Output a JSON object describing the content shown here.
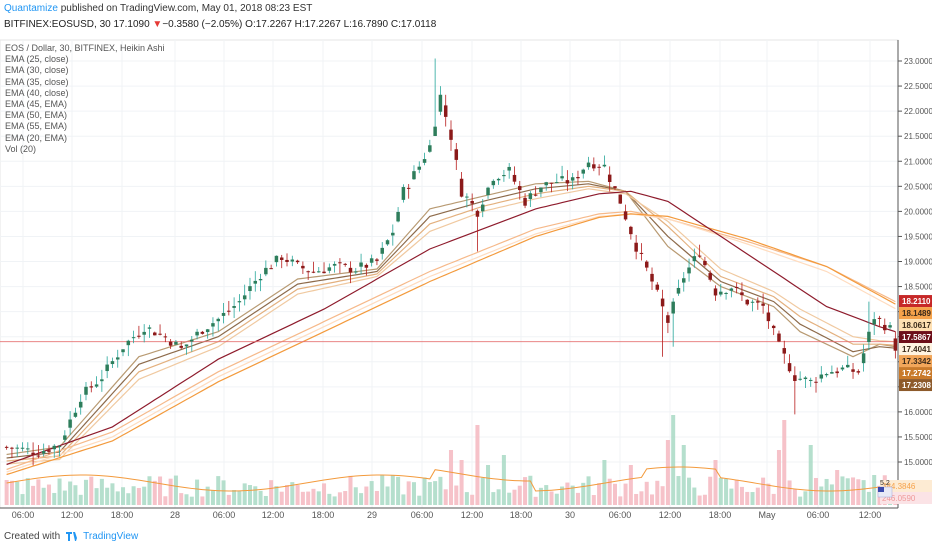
{
  "header": {
    "author": "Quantamize",
    "published": " published on TradingView.com, May 01, 2018 08:23 EST",
    "symbol_line": "BITFINEX:EOSUSD, 30",
    "last": "17.1090",
    "arrow": "▼",
    "change": "−0.3580 (−2.05%)",
    "ohlc": "O:17.2267 H:17.2267 L:16.7890 C:17.0118"
  },
  "legend": {
    "title": "EOS / Dollar, 30, BITFINEX, Heikin Ashi",
    "items": [
      "EMA (25, close)",
      "EMA (30, close)",
      "EMA (35, close)",
      "EMA (40, close)",
      "EMA (45, EMA)",
      "EMA (50, EMA)",
      "EMA (55, EMA)",
      "EMA (20, EMA)",
      "Vol (20)"
    ]
  },
  "footer": {
    "created": "Created with",
    "brand": "TradingView"
  },
  "chart_data": {
    "type": "candlestick",
    "chart_style": "Heikin Ashi",
    "y_ticks": [
      "23.0000",
      "22.5000",
      "22.0000",
      "21.5000",
      "21.0000",
      "20.5000",
      "20.0000",
      "19.5000",
      "19.0000",
      "18.5000",
      "18.0000",
      "17.5000",
      "17.0000",
      "16.5000",
      "16.0000",
      "15.5000",
      "15.0000"
    ],
    "ylim": [
      14.5,
      23.2
    ],
    "x_ticks": [
      "06:00",
      "12:00",
      "18:00",
      "28",
      "06:00",
      "12:00",
      "18:00",
      "29",
      "06:00",
      "12:00",
      "18:00",
      "30",
      "06:00",
      "12:00",
      "18:00",
      "May",
      "06:00",
      "12:00"
    ],
    "current_price_line": 17.4,
    "price_labels": [
      {
        "text": "18.2110",
        "color": "#c62828",
        "value": 18.211
      },
      {
        "text": "18.1489",
        "color": "#f6a24a",
        "value": 18.1489
      },
      {
        "text": "18.0617",
        "color": "#ffe0b2",
        "value": 18.0617
      },
      {
        "text": "17.5867",
        "color": "#6d0e19",
        "value": 17.5867
      },
      {
        "text": "17.4041",
        "color": "#fff3e0",
        "value": 17.4041
      },
      {
        "text": "17.3342",
        "color": "#f2a65a",
        "value": 17.3342
      },
      {
        "text": "17.2742",
        "color": "#c97a2a",
        "value": 17.2742
      },
      {
        "text": "17.2308",
        "color": "#8d5a2b",
        "value": 17.2308
      }
    ],
    "volume_labels": [
      {
        "text": "384.3846",
        "color": "#f6a24a"
      },
      {
        "text": "246.0590",
        "color": "#ef9a9a"
      }
    ],
    "volume_badge": "5.2",
    "ha_anchor_points": [
      [
        0,
        15.3
      ],
      [
        6,
        15.2
      ],
      [
        10,
        15.35
      ],
      [
        14,
        16.3
      ],
      [
        18,
        16.7
      ],
      [
        22,
        17.3
      ],
      [
        26,
        17.7
      ],
      [
        30,
        17.5
      ],
      [
        33,
        17.25
      ],
      [
        37,
        17.65
      ],
      [
        40,
        17.85
      ],
      [
        44,
        18.2
      ],
      [
        48,
        18.75
      ],
      [
        52,
        19.1
      ],
      [
        55,
        18.9
      ],
      [
        58,
        18.8
      ],
      [
        62,
        18.9
      ],
      [
        66,
        18.85
      ],
      [
        70,
        19.0
      ],
      [
        73,
        19.6
      ],
      [
        75,
        20.4
      ],
      [
        78,
        20.9
      ],
      [
        80,
        21.3
      ],
      [
        82,
        22.3
      ],
      [
        84,
        21.5
      ],
      [
        86,
        20.4
      ],
      [
        89,
        20.0
      ],
      [
        92,
        20.7
      ],
      [
        95,
        20.8
      ],
      [
        98,
        20.2
      ],
      [
        101,
        20.5
      ],
      [
        104,
        20.6
      ],
      [
        107,
        20.6
      ],
      [
        110,
        21.0
      ],
      [
        113,
        20.9
      ],
      [
        116,
        20.2
      ],
      [
        119,
        19.3
      ],
      [
        122,
        18.6
      ],
      [
        125,
        17.8
      ],
      [
        128,
        18.7
      ],
      [
        131,
        19.2
      ],
      [
        134,
        18.4
      ],
      [
        137,
        18.5
      ],
      [
        140,
        18.2
      ],
      [
        143,
        18.1
      ],
      [
        146,
        17.3
      ],
      [
        149,
        16.7
      ],
      [
        152,
        16.6
      ],
      [
        155,
        16.8
      ],
      [
        158,
        16.85
      ],
      [
        161,
        16.8
      ],
      [
        164,
        17.9
      ],
      [
        167,
        17.65
      ],
      [
        168,
        17.3
      ]
    ],
    "ema_series": [
      {
        "name": "EMA (25, close)",
        "color": "#b89a72",
        "points": [
          [
            0,
            15.15
          ],
          [
            10,
            15.3
          ],
          [
            25,
            17.1
          ],
          [
            40,
            17.6
          ],
          [
            55,
            18.65
          ],
          [
            70,
            18.85
          ],
          [
            80,
            20.05
          ],
          [
            90,
            20.3
          ],
          [
            100,
            20.55
          ],
          [
            110,
            20.6
          ],
          [
            117,
            20.4
          ],
          [
            125,
            19.3
          ],
          [
            135,
            18.5
          ],
          [
            145,
            18.1
          ],
          [
            150,
            17.6
          ],
          [
            160,
            17.1
          ],
          [
            165,
            17.35
          ],
          [
            168,
            17.3
          ]
        ]
      },
      {
        "name": "EMA (30, close)",
        "color": "#8d6a4a",
        "points": [
          [
            0,
            15.08
          ],
          [
            10,
            15.2
          ],
          [
            25,
            16.95
          ],
          [
            40,
            17.5
          ],
          [
            55,
            18.55
          ],
          [
            70,
            18.8
          ],
          [
            80,
            19.9
          ],
          [
            90,
            20.2
          ],
          [
            100,
            20.45
          ],
          [
            110,
            20.55
          ],
          [
            117,
            20.4
          ],
          [
            125,
            19.5
          ],
          [
            135,
            18.6
          ],
          [
            145,
            18.2
          ],
          [
            150,
            17.75
          ],
          [
            160,
            17.2
          ],
          [
            165,
            17.3
          ],
          [
            168,
            17.27
          ]
        ]
      },
      {
        "name": "EMA (35, close)",
        "color": "#e3b07e",
        "points": [
          [
            0,
            15.02
          ],
          [
            10,
            15.12
          ],
          [
            25,
            16.8
          ],
          [
            40,
            17.4
          ],
          [
            55,
            18.45
          ],
          [
            70,
            18.75
          ],
          [
            80,
            19.75
          ],
          [
            90,
            20.1
          ],
          [
            100,
            20.35
          ],
          [
            110,
            20.5
          ],
          [
            117,
            20.4
          ],
          [
            125,
            19.7
          ],
          [
            135,
            18.7
          ],
          [
            145,
            18.3
          ],
          [
            150,
            17.9
          ],
          [
            160,
            17.35
          ],
          [
            165,
            17.35
          ],
          [
            168,
            17.33
          ]
        ]
      },
      {
        "name": "EMA (40, close)",
        "color": "#f0c9a0",
        "points": [
          [
            0,
            14.96
          ],
          [
            10,
            15.05
          ],
          [
            25,
            16.65
          ],
          [
            40,
            17.3
          ],
          [
            55,
            18.35
          ],
          [
            70,
            18.7
          ],
          [
            80,
            19.6
          ],
          [
            90,
            20.0
          ],
          [
            100,
            20.25
          ],
          [
            110,
            20.45
          ],
          [
            117,
            20.35
          ],
          [
            125,
            19.8
          ],
          [
            135,
            18.85
          ],
          [
            145,
            18.4
          ],
          [
            150,
            18.05
          ],
          [
            160,
            17.5
          ],
          [
            165,
            17.42
          ],
          [
            168,
            17.4
          ]
        ]
      },
      {
        "name": "EMA (45, EMA)",
        "color": "#f6b98a",
        "points": [
          [
            0,
            14.85
          ],
          [
            20,
            15.6
          ],
          [
            40,
            16.8
          ],
          [
            60,
            17.8
          ],
          [
            80,
            18.8
          ],
          [
            100,
            19.65
          ],
          [
            112,
            19.95
          ],
          [
            118,
            20.0
          ],
          [
            125,
            19.85
          ],
          [
            140,
            19.4
          ],
          [
            155,
            18.9
          ],
          [
            168,
            18.2
          ]
        ]
      },
      {
        "name": "EMA (50, EMA)",
        "color": "#ffdcbf",
        "points": [
          [
            0,
            14.8
          ],
          [
            20,
            15.5
          ],
          [
            40,
            16.7
          ],
          [
            60,
            17.7
          ],
          [
            80,
            18.7
          ],
          [
            100,
            19.55
          ],
          [
            112,
            19.9
          ],
          [
            118,
            19.95
          ],
          [
            125,
            19.85
          ],
          [
            140,
            19.35
          ],
          [
            155,
            18.8
          ],
          [
            168,
            18.06
          ]
        ]
      },
      {
        "name": "EMA (55, EMA)",
        "color": "#f39a3c",
        "points": [
          [
            0,
            14.75
          ],
          [
            20,
            15.42
          ],
          [
            40,
            16.6
          ],
          [
            60,
            17.6
          ],
          [
            80,
            18.6
          ],
          [
            100,
            19.5
          ],
          [
            112,
            19.88
          ],
          [
            118,
            19.95
          ],
          [
            125,
            19.9
          ],
          [
            140,
            19.45
          ],
          [
            155,
            18.9
          ],
          [
            168,
            18.15
          ]
        ]
      },
      {
        "name": "EMA (20, EMA)",
        "color": "#8e1b2c",
        "points": [
          [
            0,
            14.95
          ],
          [
            20,
            15.7
          ],
          [
            40,
            17.05
          ],
          [
            60,
            18.05
          ],
          [
            80,
            19.25
          ],
          [
            100,
            20.05
          ],
          [
            112,
            20.35
          ],
          [
            118,
            20.4
          ],
          [
            125,
            20.2
          ],
          [
            135,
            19.5
          ],
          [
            145,
            18.8
          ],
          [
            155,
            18.1
          ],
          [
            165,
            17.7
          ],
          [
            168,
            17.6
          ]
        ]
      }
    ],
    "volume_spikes": [
      [
        84,
        0.55
      ],
      [
        86,
        0.45
      ],
      [
        89,
        0.8
      ],
      [
        91,
        0.4
      ],
      [
        94,
        0.5
      ],
      [
        113,
        0.45
      ],
      [
        118,
        0.4
      ],
      [
        125,
        0.65
      ],
      [
        126,
        0.9
      ],
      [
        128,
        0.6
      ],
      [
        134,
        0.45
      ],
      [
        146,
        0.55
      ],
      [
        147,
        0.85
      ],
      [
        152,
        0.6
      ],
      [
        157,
        0.35
      ],
      [
        164,
        0.3
      ]
    ]
  }
}
